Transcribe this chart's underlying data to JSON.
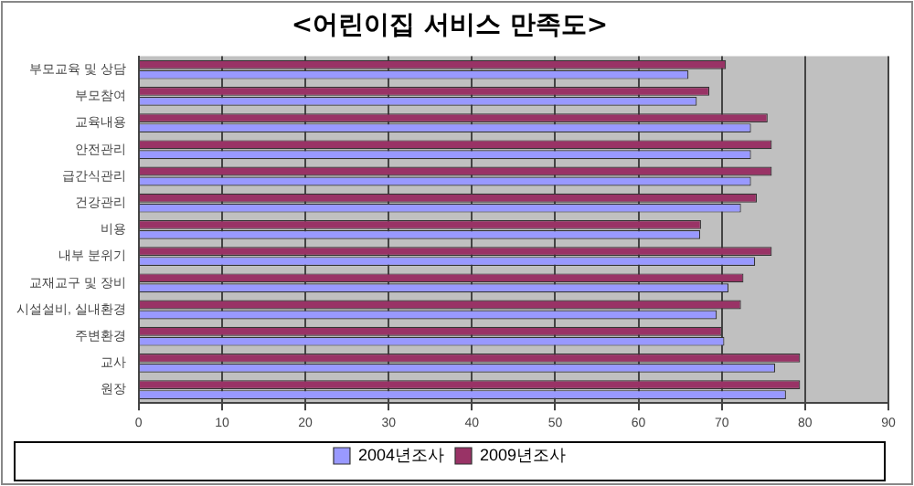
{
  "chart_data": {
    "type": "bar",
    "orientation": "horizontal",
    "title": "<어린이집 서비스 만족도>",
    "categories": [
      "부모교육 및 상담",
      "부모참여",
      "교육내용",
      "안전관리",
      "급간식관리",
      "건강관리",
      "비용",
      "내부 분위기",
      "교재교구 및 장비",
      "시설설비, 실내환경",
      "주변환경",
      "교사",
      "원장"
    ],
    "series": [
      {
        "name": "2004년조사",
        "color": "#9999ff",
        "values": [
          66.0,
          67.0,
          73.5,
          73.5,
          73.5,
          72.3,
          67.4,
          74.0,
          70.8,
          69.4,
          70.3,
          76.4,
          77.7
        ]
      },
      {
        "name": "2009년조사",
        "color": "#993366",
        "values": [
          70.5,
          68.5,
          75.5,
          76.0,
          76.0,
          74.2,
          67.5,
          76.0,
          72.6,
          72.3,
          70.0,
          79.4,
          79.4
        ]
      }
    ],
    "xlim": [
      0,
      90
    ],
    "xticks": [
      0,
      10,
      20,
      30,
      40,
      50,
      60,
      70,
      80,
      90
    ],
    "grid": "x",
    "legend": "bottom"
  }
}
